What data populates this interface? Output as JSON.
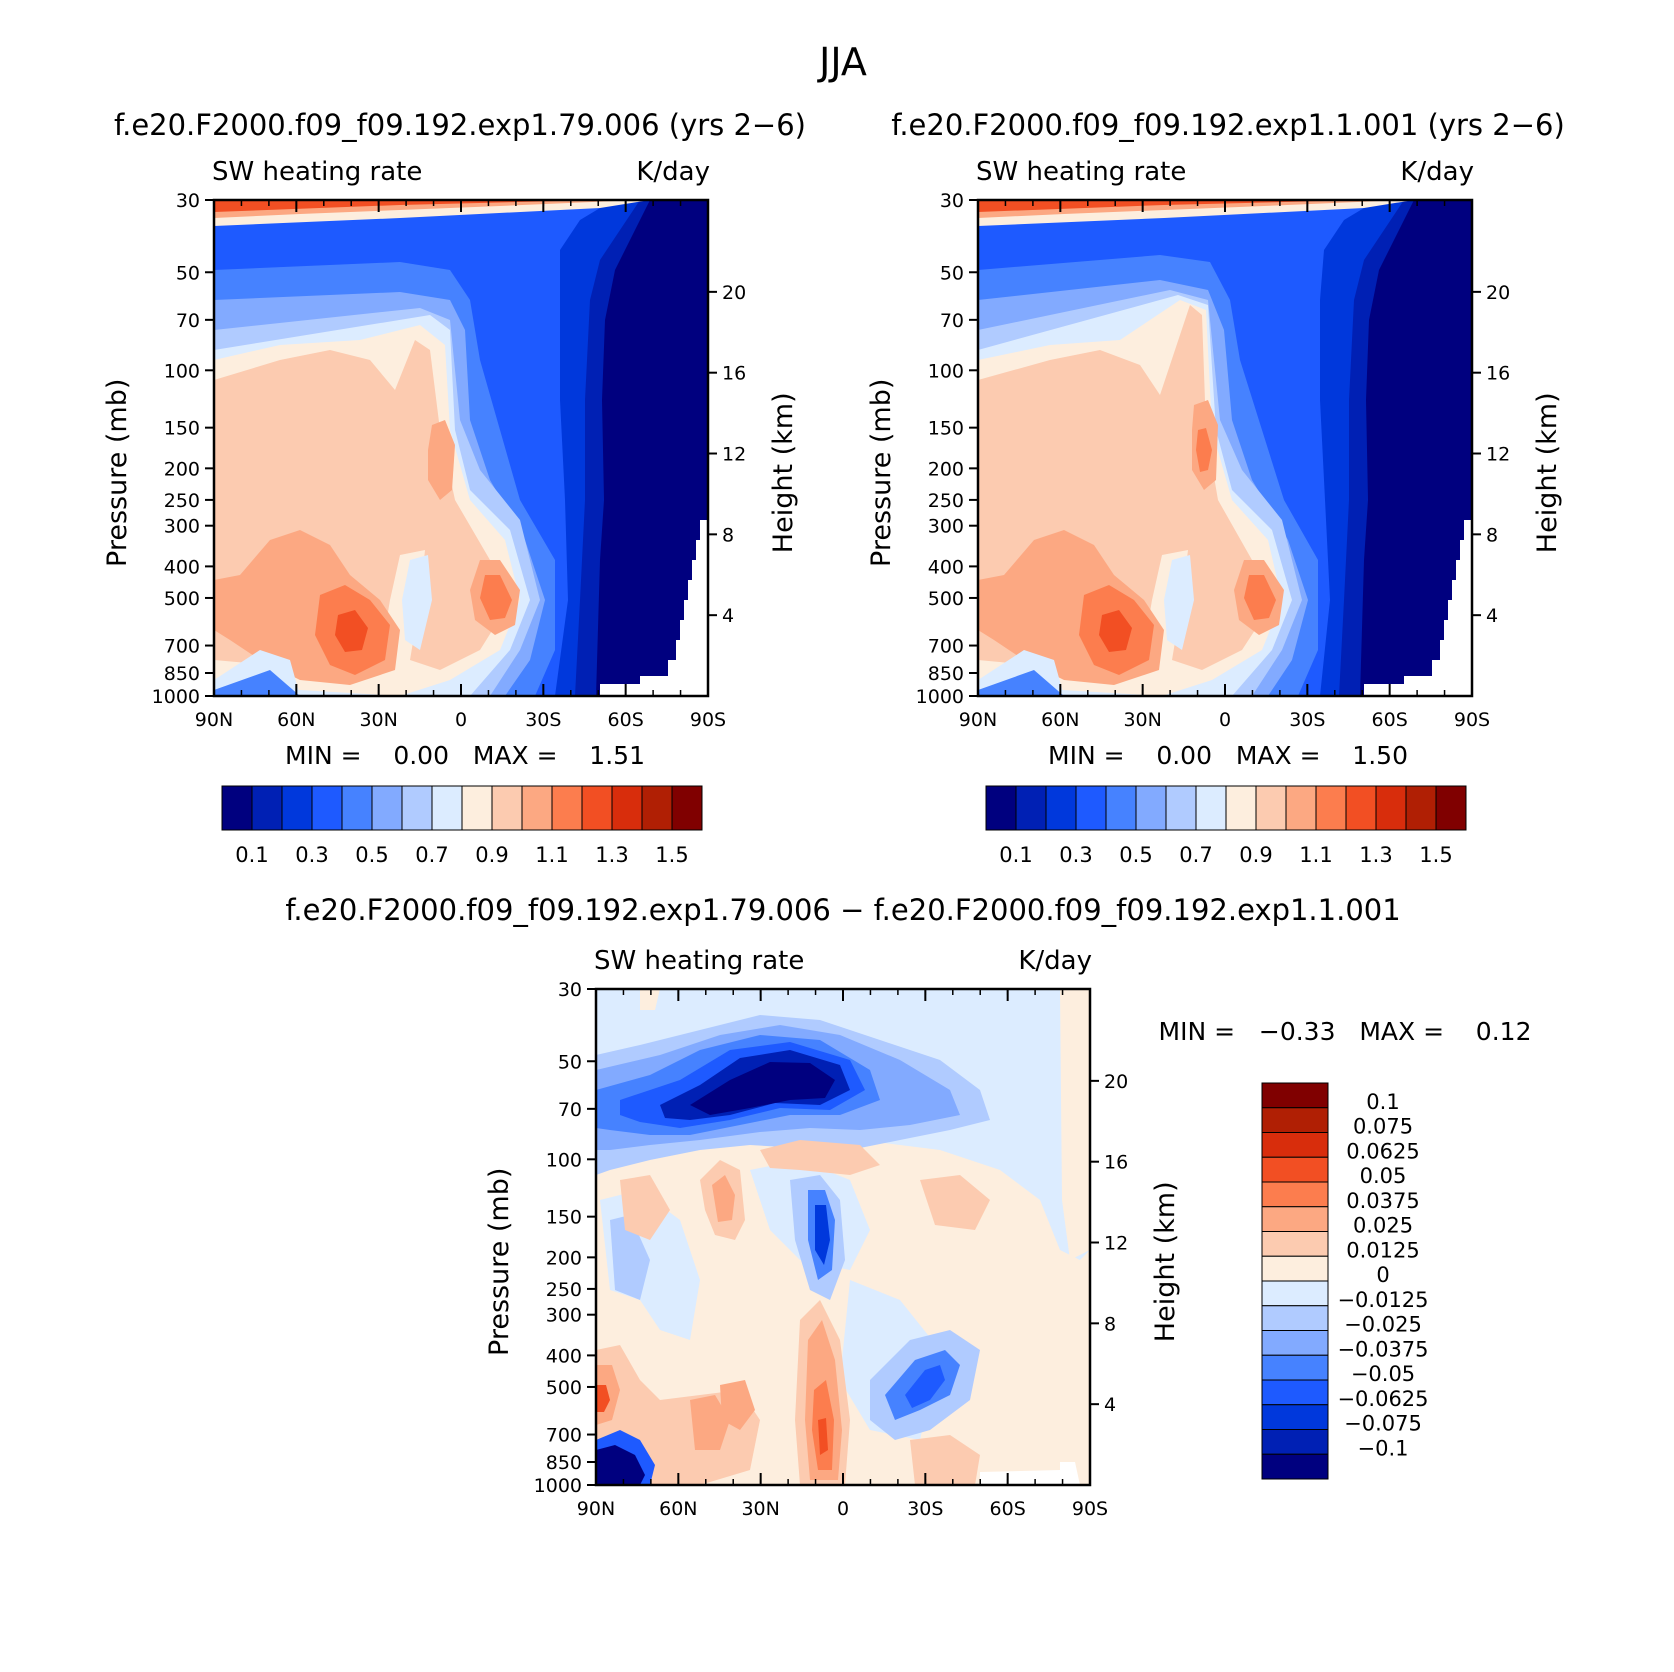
{
  "figure": {
    "title": "JJA"
  },
  "colors": {
    "abs_palette": [
      "#00007f",
      "#0020b4",
      "#0038dc",
      "#1e5aff",
      "#4682ff",
      "#82aaff",
      "#b0cbff",
      "#dcecff",
      "#fdeede",
      "#fccbb0",
      "#fca882",
      "#fc7d4e",
      "#f24f23",
      "#d82d0c",
      "#b01f04",
      "#800000"
    ],
    "diff_palette": [
      "#00007f",
      "#0020b4",
      "#0038dc",
      "#1e5aff",
      "#4682ff",
      "#82aaff",
      "#b0cbff",
      "#dcecff",
      "#fdeede",
      "#fccbb0",
      "#fca882",
      "#fc7d4e",
      "#f24f23",
      "#d82d0c",
      "#b01f04",
      "#800000"
    ]
  },
  "chart_data": [
    {
      "type": "heatmap",
      "title": "f.e20.F2000.f09_f09.192.exp1.79.006 (yrs 2−6)",
      "left_string": "SW heating rate",
      "right_string": "K/day",
      "ylabel": "Pressure (mb)",
      "ylabel_right": "Height (km)",
      "yticks": [
        "30",
        "50",
        "70",
        "100",
        "150",
        "200",
        "250",
        "300",
        "400",
        "500",
        "700",
        "850",
        "1000"
      ],
      "yticks_right": [
        "20",
        "16",
        "12",
        "8",
        "4"
      ],
      "xticks": [
        "90N",
        "60N",
        "30N",
        "0",
        "30S",
        "60S",
        "90S"
      ],
      "xlim": [
        90,
        -90
      ],
      "ylim": [
        1000,
        30
      ],
      "min_max": "MIN =    0.00   MAX =    1.51",
      "colorbar_labels": [
        "0.1",
        "0.3",
        "0.5",
        "0.7",
        "0.9",
        "1.1",
        "1.3",
        "1.5"
      ],
      "levels": [
        0.1,
        0.2,
        0.3,
        0.4,
        0.5,
        0.6,
        0.7,
        0.8,
        0.9,
        1.0,
        1.1,
        1.2,
        1.3,
        1.4,
        1.5
      ]
    },
    {
      "type": "heatmap",
      "title": "f.e20.F2000.f09_f09.192.exp1.1.001 (yrs 2−6)",
      "left_string": "SW heating rate",
      "right_string": "K/day",
      "ylabel": "Pressure (mb)",
      "ylabel_right": "Height (km)",
      "yticks": [
        "30",
        "50",
        "70",
        "100",
        "150",
        "200",
        "250",
        "300",
        "400",
        "500",
        "700",
        "850",
        "1000"
      ],
      "yticks_right": [
        "20",
        "16",
        "12",
        "8",
        "4"
      ],
      "xticks": [
        "90N",
        "60N",
        "30N",
        "0",
        "30S",
        "60S",
        "90S"
      ],
      "xlim": [
        90,
        -90
      ],
      "ylim": [
        1000,
        30
      ],
      "min_max": "MIN =    0.00   MAX =    1.50",
      "colorbar_labels": [
        "0.1",
        "0.3",
        "0.5",
        "0.7",
        "0.9",
        "1.1",
        "1.3",
        "1.5"
      ],
      "levels": [
        0.1,
        0.2,
        0.3,
        0.4,
        0.5,
        0.6,
        0.7,
        0.8,
        0.9,
        1.0,
        1.1,
        1.2,
        1.3,
        1.4,
        1.5
      ]
    },
    {
      "type": "heatmap",
      "title": "f.e20.F2000.f09_f09.192.exp1.79.006 − f.e20.F2000.f09_f09.192.exp1.1.001",
      "left_string": "SW heating rate",
      "right_string": "K/day",
      "ylabel": "Pressure (mb)",
      "ylabel_right": "Height (km)",
      "yticks": [
        "30",
        "50",
        "70",
        "100",
        "150",
        "200",
        "250",
        "300",
        "400",
        "500",
        "700",
        "850",
        "1000"
      ],
      "yticks_right": [
        "20",
        "16",
        "12",
        "8",
        "4"
      ],
      "xticks": [
        "90N",
        "60N",
        "30N",
        "0",
        "30S",
        "60S",
        "90S"
      ],
      "xlim": [
        90,
        -90
      ],
      "ylim": [
        1000,
        30
      ],
      "min_max": "MIN =   −0.33   MAX =    0.12",
      "colorbar_labels": [
        "0.1",
        "0.075",
        "0.0625",
        "0.05",
        "0.0375",
        "0.025",
        "0.0125",
        "0",
        "−0.0125",
        "−0.025",
        "−0.0375",
        "−0.05",
        "−0.0625",
        "−0.075",
        "−0.1"
      ],
      "levels": [
        -0.1,
        -0.075,
        -0.0625,
        -0.05,
        -0.0375,
        -0.025,
        -0.0125,
        0,
        0.0125,
        0.025,
        0.0375,
        0.05,
        0.0625,
        0.075,
        0.1
      ]
    }
  ]
}
